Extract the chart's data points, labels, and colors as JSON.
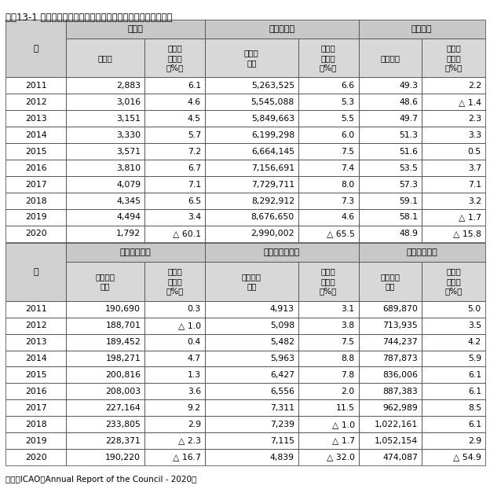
{
  "title": "資料13-1 世界の定期航空輸送量（国際線・国内線の計）の推移",
  "source": "資料）ICAO「Annual Report of the Council - 2020」",
  "table1": {
    "top_headers": [
      "旅客数",
      "旅客人キロ",
      "貨物トン"
    ],
    "sub_headers": [
      [
        "百万人",
        "前年比\n伸び率\n（%）"
      ],
      [
        "百万人\nキロ",
        "前年比\n伸び率\n（%）"
      ],
      [
        "百万トン",
        "前年比\n伸び率\n（%）"
      ]
    ],
    "years": [
      "2011",
      "2012",
      "2013",
      "2014",
      "2015",
      "2016",
      "2017",
      "2018",
      "2019",
      "2020"
    ],
    "col1": [
      "2,883",
      "3,016",
      "3,151",
      "3,330",
      "3,571",
      "3,810",
      "4,079",
      "4,345",
      "4,494",
      "1,792"
    ],
    "col2": [
      "6.1",
      "4.6",
      "4.5",
      "5.7",
      "7.2",
      "6.7",
      "7.1",
      "6.5",
      "3.4",
      "△ 60.1"
    ],
    "col3": [
      "5,263,525",
      "5,545,088",
      "5,849,663",
      "6,199,298",
      "6,664,145",
      "7,156,691",
      "7,729,711",
      "8,292,912",
      "8,676,650",
      "2,990,002"
    ],
    "col4": [
      "6.6",
      "5.3",
      "5.5",
      "6.0",
      "7.5",
      "7.4",
      "8.0",
      "7.3",
      "4.6",
      "△ 65.5"
    ],
    "col5": [
      "49.3",
      "48.6",
      "49.7",
      "51.3",
      "51.6",
      "53.5",
      "57.3",
      "59.1",
      "58.1",
      "48.9"
    ],
    "col6": [
      "2.2",
      "△ 1.4",
      "2.3",
      "3.3",
      "0.5",
      "3.7",
      "7.1",
      "3.2",
      "△ 1.7",
      "△ 15.8"
    ]
  },
  "table2": {
    "top_headers": [
      "貨物トンキロ",
      "郵便物トンキロ",
      "有償トンキロ"
    ],
    "sub_headers": [
      [
        "百万トン\nキロ",
        "前年比\n伸び率\n（%）"
      ],
      [
        "百万トン\nキロ",
        "前年比\n伸び率\n（%）"
      ],
      [
        "百万トン\nキロ",
        "前年比\n伸び率\n（%）"
      ]
    ],
    "years": [
      "2011",
      "2012",
      "2013",
      "2014",
      "2015",
      "2016",
      "2017",
      "2018",
      "2019",
      "2020"
    ],
    "col1": [
      "190,690",
      "188,701",
      "189,452",
      "198,271",
      "200,816",
      "208,003",
      "227,164",
      "233,805",
      "228,371",
      "190,220"
    ],
    "col2": [
      "0.3",
      "△ 1.0",
      "0.4",
      "4.7",
      "1.3",
      "3.6",
      "9.2",
      "2.9",
      "△ 2.3",
      "△ 16.7"
    ],
    "col3": [
      "4,913",
      "5,098",
      "5,482",
      "5,963",
      "6,427",
      "6,556",
      "7,311",
      "7,239",
      "7,115",
      "4,839"
    ],
    "col4": [
      "3.1",
      "3.8",
      "7.5",
      "8.8",
      "7.8",
      "2.0",
      "11.5",
      "△ 1.0",
      "△ 1.7",
      "△ 32.0"
    ],
    "col5": [
      "689,870",
      "713,935",
      "744,237",
      "787,873",
      "836,006",
      "887,383",
      "962,989",
      "1,022,161",
      "1,052,154",
      "474,087"
    ],
    "col6": [
      "5.0",
      "3.5",
      "4.2",
      "5.9",
      "6.1",
      "6.1",
      "8.5",
      "6.1",
      "2.9",
      "△ 54.9"
    ]
  },
  "header_bg": "#d0d0d0",
  "subheader_bg": "#d8d8d8",
  "data_bg": "#ffffff",
  "border_color": "#555555",
  "top_header_bg": "#c8c8c8",
  "title_fontsize": 8.5,
  "header_fontsize": 8.0,
  "subheader_fontsize": 7.5,
  "data_fontsize": 7.8,
  "source_fontsize": 7.5
}
